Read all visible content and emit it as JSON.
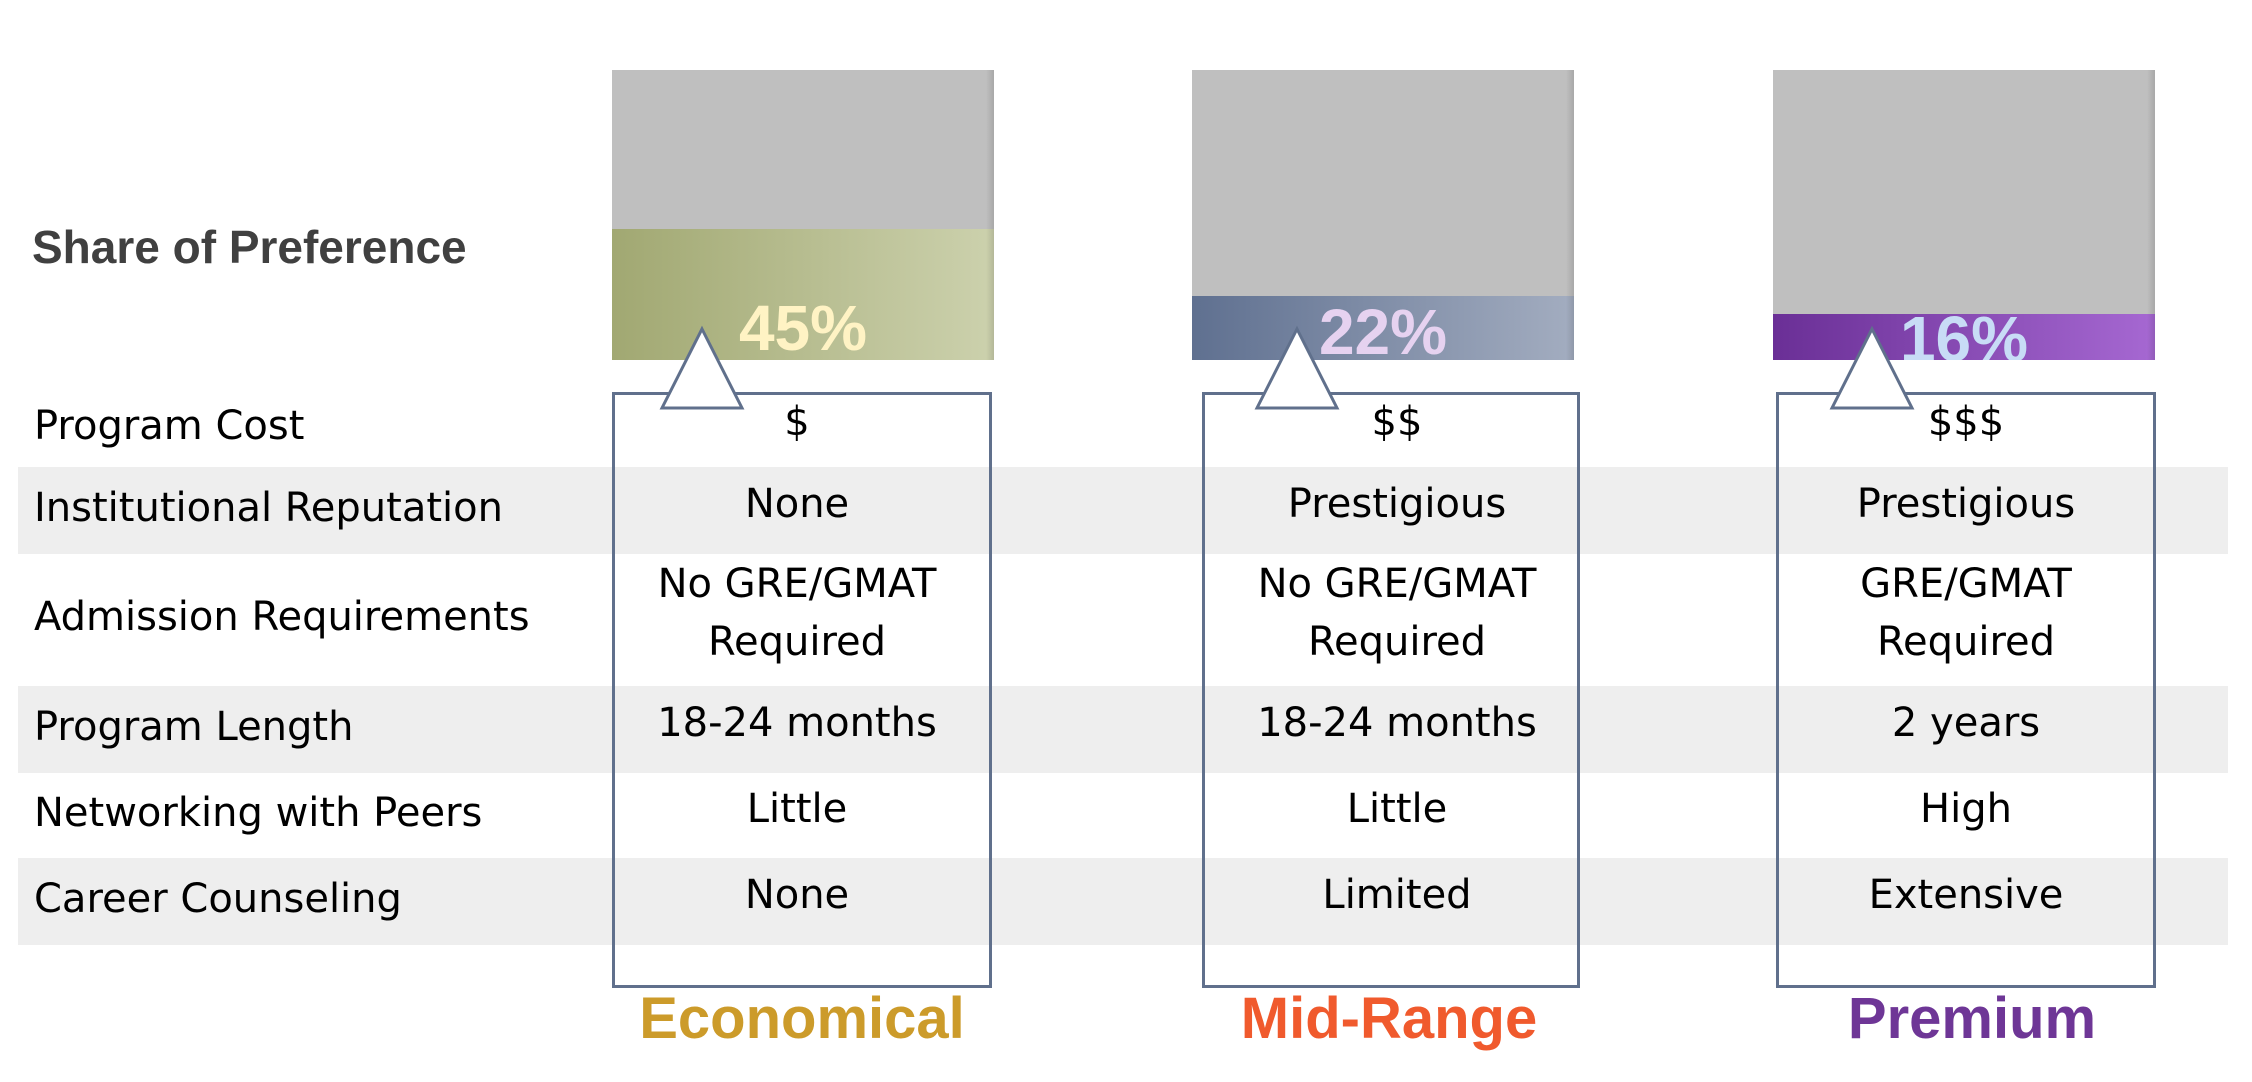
{
  "preference_label": "Share of Preference",
  "attributes": [
    "Program Cost",
    "Institutional Reputation",
    "Admission Requirements",
    "Program Length",
    "Networking with Peers",
    "Career Counseling"
  ],
  "colors": {
    "bar_background": "#bfbfbf",
    "frame": "#60708c",
    "stripe": "#eeeeee"
  },
  "chart_data": {
    "type": "bar",
    "categories": [
      "Economical",
      "Mid-Range",
      "Premium"
    ],
    "values": [
      45,
      22,
      16
    ],
    "value_labels": [
      "45%",
      "22%",
      "16%"
    ],
    "ylim": [
      0,
      100
    ],
    "grid": false
  },
  "tiers": [
    {
      "name": "Economical",
      "name_color": "#cc9b2a",
      "bar_fill_from": "#a1a872",
      "bar_fill_to": "#ccd1ad",
      "value_color": "#fff3c4",
      "cells": [
        "$",
        "None",
        "No GRE/GMAT\nRequired",
        "18-24 months",
        "Little",
        "None"
      ]
    },
    {
      "name": "Mid-Range",
      "name_color": "#f05a2d",
      "bar_fill_from": "#5f7090",
      "bar_fill_to": "#a3adc0",
      "value_color": "#e6d2f0",
      "cells": [
        "$$",
        "Prestigious",
        "No GRE/GMAT\nRequired",
        "18-24 months",
        "Little",
        "Limited"
      ]
    },
    {
      "name": "Premium",
      "name_color": "#6e3696",
      "bar_fill_from": "#6a2f96",
      "bar_fill_to": "#a668d2",
      "value_color": "#c8dcf6",
      "cells": [
        "$$$",
        "Prestigious",
        "GRE/GMAT\nRequired",
        "2 years",
        "High",
        "Extensive"
      ]
    }
  ]
}
